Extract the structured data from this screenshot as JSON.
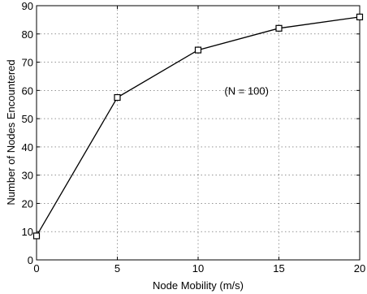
{
  "chart_data": {
    "type": "line",
    "title": "",
    "xlabel": "Node Mobility (m/s)",
    "ylabel": "Number of Nodes Encountered",
    "xlim": [
      0,
      20
    ],
    "ylim": [
      0,
      90
    ],
    "xticks": [
      0,
      5,
      10,
      15,
      20
    ],
    "yticks": [
      0,
      10,
      20,
      30,
      40,
      50,
      60,
      70,
      80,
      90
    ],
    "grid": true,
    "x": [
      0,
      5,
      10,
      15,
      20
    ],
    "series": [
      {
        "values": [
          8.5,
          57.5,
          74.3,
          82,
          86
        ],
        "marker": "square",
        "color": "#000000"
      }
    ],
    "annotations": [
      {
        "text": "(N = 100)",
        "x": 13,
        "y": 60
      }
    ]
  }
}
